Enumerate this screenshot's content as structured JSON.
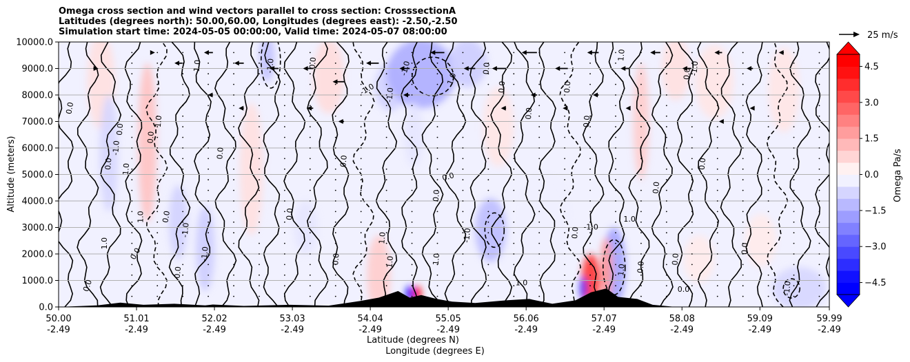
{
  "title": {
    "line1": "Omega cross section and wind vectors parallel to cross section: CrosssectionA",
    "line2": "Latitudes (degrees north): 50.00,60.00, Longitudes (degrees east): -2.50,-2.50",
    "line3": "Simulation start time: 2024-05-05 00:00:00, Valid time: 2024-05-07 08:00:00"
  },
  "quiver_key_label": "25 m/s",
  "chart_data": {
    "type": "heatmap",
    "title": "Omega cross section and wind vectors parallel to cross section: CrosssectionA",
    "xlabel_line1": "Latitude (degrees N)",
    "xlabel_line2": "Longitude (degrees E)",
    "ylabel": "Altitude (meters)",
    "ylim": [
      0,
      10000
    ],
    "xlim": [
      50.0,
      59.99
    ],
    "grid": "horizontal",
    "x_ticks": [
      {
        "lat": 50.0,
        "lat_label": "50.00",
        "lon_label": "-2.49"
      },
      {
        "lat": 51.01,
        "lat_label": "51.01",
        "lon_label": "-2.49"
      },
      {
        "lat": 52.02,
        "lat_label": "52.02",
        "lon_label": "-2.49"
      },
      {
        "lat": 53.03,
        "lat_label": "53.03",
        "lon_label": "-2.49"
      },
      {
        "lat": 54.04,
        "lat_label": "54.04",
        "lon_label": "-2.49"
      },
      {
        "lat": 55.05,
        "lat_label": "55.05",
        "lon_label": "-2.49"
      },
      {
        "lat": 56.06,
        "lat_label": "56.06",
        "lon_label": "-2.49"
      },
      {
        "lat": 57.07,
        "lat_label": "57.07",
        "lon_label": "-2.49"
      },
      {
        "lat": 58.08,
        "lat_label": "58.08",
        "lon_label": "-2.49"
      },
      {
        "lat": 59.09,
        "lat_label": "59.09",
        "lon_label": "-2.49"
      },
      {
        "lat": 59.99,
        "lat_label": "59.99",
        "lon_label": "-2.49"
      }
    ],
    "y_ticks": [
      {
        "value": 0,
        "label": "0.0"
      },
      {
        "value": 1000,
        "label": "1000.0"
      },
      {
        "value": 2000,
        "label": "2000.0"
      },
      {
        "value": 3000,
        "label": "3000.0"
      },
      {
        "value": 4000,
        "label": "4000.0"
      },
      {
        "value": 5000,
        "label": "5000.0"
      },
      {
        "value": 6000,
        "label": "6000.0"
      },
      {
        "value": 7000,
        "label": "7000.0"
      },
      {
        "value": 8000,
        "label": "8000.0"
      },
      {
        "value": 9000,
        "label": "9000.0"
      },
      {
        "value": 10000,
        "label": "10000.0"
      }
    ],
    "colorbar": {
      "label": "Omega Pa/s",
      "range": [
        -5,
        5
      ],
      "extend": "both",
      "cmap": "bwr",
      "ticks": [
        {
          "value": 4.5,
          "label": "4.5"
        },
        {
          "value": 3.0,
          "label": "3.0"
        },
        {
          "value": 1.5,
          "label": "1.5"
        },
        {
          "value": 0.0,
          "label": "0.0"
        },
        {
          "value": -1.5,
          "label": "−1.5"
        },
        {
          "value": -3.0,
          "label": "−3.0"
        },
        {
          "value": -4.5,
          "label": "−4.5"
        }
      ]
    },
    "omega_regions": [
      {
        "lat": 50.55,
        "alt": 8500,
        "w": 0.18,
        "h": 1800,
        "value": 0.6
      },
      {
        "lat": 51.15,
        "alt": 6200,
        "w": 0.12,
        "h": 3000,
        "value": 1.2
      },
      {
        "lat": 50.65,
        "alt": 5800,
        "w": 0.12,
        "h": 2200,
        "value": -0.8
      },
      {
        "lat": 51.55,
        "alt": 3200,
        "w": 0.12,
        "h": 1400,
        "value": -0.9
      },
      {
        "lat": 51.9,
        "alt": 2200,
        "w": 0.12,
        "h": 1600,
        "value": -1.0
      },
      {
        "lat": 52.5,
        "alt": 5200,
        "w": 0.15,
        "h": 2500,
        "value": 0.6
      },
      {
        "lat": 52.7,
        "alt": 9400,
        "w": 0.1,
        "h": 900,
        "value": -1.2
      },
      {
        "lat": 53.5,
        "alt": 8700,
        "w": 0.2,
        "h": 1400,
        "value": 0.7
      },
      {
        "lat": 54.3,
        "alt": 8300,
        "w": 0.2,
        "h": 900,
        "value": -0.9
      },
      {
        "lat": 54.7,
        "alt": 8800,
        "w": 0.45,
        "h": 1300,
        "value": -1.6
      },
      {
        "lat": 55.3,
        "alt": 9200,
        "w": 0.25,
        "h": 900,
        "value": -1.0
      },
      {
        "lat": 55.7,
        "alt": 6800,
        "w": 0.2,
        "h": 1500,
        "value": 0.5
      },
      {
        "lat": 54.6,
        "alt": 6500,
        "w": 0.12,
        "h": 1200,
        "value": -0.5
      },
      {
        "lat": 54.15,
        "alt": 1200,
        "w": 0.15,
        "h": 1500,
        "value": 1.0
      },
      {
        "lat": 54.55,
        "alt": 500,
        "w": 0.05,
        "h": 300,
        "value": -5.0
      },
      {
        "lat": 54.65,
        "alt": 500,
        "w": 0.05,
        "h": 300,
        "value": 5.0
      },
      {
        "lat": 55.6,
        "alt": 2900,
        "w": 0.2,
        "h": 1200,
        "value": -1.3
      },
      {
        "lat": 56.9,
        "alt": 1000,
        "w": 0.12,
        "h": 1000,
        "value": 4.0
      },
      {
        "lat": 56.8,
        "alt": 700,
        "w": 0.04,
        "h": 450,
        "value": -4.5
      },
      {
        "lat": 57.2,
        "alt": 1500,
        "w": 0.15,
        "h": 1500,
        "value": -1.8
      },
      {
        "lat": 57.1,
        "alt": 1400,
        "w": 0.08,
        "h": 1200,
        "value": 2.0
      },
      {
        "lat": 57.55,
        "alt": 7000,
        "w": 0.1,
        "h": 2200,
        "value": 1.0
      },
      {
        "lat": 58.0,
        "alt": 9000,
        "w": 0.18,
        "h": 1200,
        "value": 0.6
      },
      {
        "lat": 58.5,
        "alt": 8500,
        "w": 0.25,
        "h": 1400,
        "value": 0.5
      },
      {
        "lat": 59.4,
        "alt": 8200,
        "w": 0.2,
        "h": 1600,
        "value": 0.5
      },
      {
        "lat": 59.6,
        "alt": 700,
        "w": 0.35,
        "h": 800,
        "value": -0.8
      },
      {
        "lat": 58.3,
        "alt": 1800,
        "w": 0.2,
        "h": 900,
        "value": 0.4
      },
      {
        "lat": 59.1,
        "alt": 2500,
        "w": 0.2,
        "h": 1000,
        "value": 0.4
      },
      {
        "lat": 53.2,
        "alt": 3000,
        "w": 0.15,
        "h": 1000,
        "value": -0.5
      },
      {
        "lat": 56.3,
        "alt": 3500,
        "w": 0.3,
        "h": 1500,
        "value": -0.3
      }
    ],
    "contour_labels": [
      {
        "lat": 50.15,
        "alt": 7500,
        "label": "0.0",
        "angle": -80
      },
      {
        "lat": 50.38,
        "alt": 800,
        "label": "0.0",
        "angle": -70
      },
      {
        "lat": 50.6,
        "alt": 2400,
        "label": "1.0",
        "angle": -90
      },
      {
        "lat": 50.65,
        "alt": 5400,
        "label": "0.0",
        "angle": -85
      },
      {
        "lat": 50.75,
        "alt": 6000,
        "label": "-1.0",
        "angle": -85
      },
      {
        "lat": 50.8,
        "alt": 6700,
        "label": "0.0",
        "angle": -85
      },
      {
        "lat": 50.88,
        "alt": 5200,
        "label": "1.0",
        "angle": -85
      },
      {
        "lat": 51.07,
        "alt": 3400,
        "label": "1.0",
        "angle": -90
      },
      {
        "lat": 51.0,
        "alt": 2000,
        "label": "0.0",
        "angle": -60
      },
      {
        "lat": 51.2,
        "alt": 6400,
        "label": "0.0",
        "angle": -85
      },
      {
        "lat": 51.3,
        "alt": 7000,
        "label": "1.0",
        "angle": -85
      },
      {
        "lat": 51.4,
        "alt": 3400,
        "label": "0.0",
        "angle": -80
      },
      {
        "lat": 51.55,
        "alt": 1300,
        "label": "0.0",
        "angle": -85
      },
      {
        "lat": 51.65,
        "alt": 2900,
        "label": "-1.0",
        "angle": -85
      },
      {
        "lat": 51.9,
        "alt": 2000,
        "label": "-1.0",
        "angle": -85
      },
      {
        "lat": 51.8,
        "alt": 9100,
        "label": "1.0",
        "angle": -85
      },
      {
        "lat": 52.1,
        "alt": 5800,
        "label": "0.0",
        "angle": -85
      },
      {
        "lat": 52.75,
        "alt": 9100,
        "label": "-1.0",
        "angle": -85
      },
      {
        "lat": 53.0,
        "alt": 3500,
        "label": "0.0",
        "angle": -85
      },
      {
        "lat": 53.3,
        "alt": 9200,
        "label": "0.0",
        "angle": -85
      },
      {
        "lat": 53.7,
        "alt": 5500,
        "label": "0.0",
        "angle": -85
      },
      {
        "lat": 53.6,
        "alt": 1800,
        "label": "0.0",
        "angle": -85
      },
      {
        "lat": 54.2,
        "alt": 2600,
        "label": "1.0",
        "angle": -85
      },
      {
        "lat": 54.3,
        "alt": 1700,
        "label": "1.0",
        "angle": -85
      },
      {
        "lat": 54.0,
        "alt": 8200,
        "label": "-1.0",
        "angle": -30
      },
      {
        "lat": 54.3,
        "alt": 8000,
        "label": "-1.0",
        "angle": -85
      },
      {
        "lat": 54.5,
        "alt": 9000,
        "label": "-1.0",
        "angle": -75
      },
      {
        "lat": 54.9,
        "alt": 1800,
        "label": "1.0",
        "angle": -85
      },
      {
        "lat": 55.05,
        "alt": 4900,
        "label": "0.0",
        "angle": -15
      },
      {
        "lat": 54.9,
        "alt": 4200,
        "label": "0.0",
        "angle": -85
      },
      {
        "lat": 55.1,
        "alt": 8600,
        "label": "1.0",
        "angle": -70
      },
      {
        "lat": 55.3,
        "alt": 2700,
        "label": "-1.0",
        "angle": -85
      },
      {
        "lat": 55.55,
        "alt": 9000,
        "label": "0.0",
        "angle": -85
      },
      {
        "lat": 55.75,
        "alt": 8300,
        "label": "0.0",
        "angle": -85
      },
      {
        "lat": 56.1,
        "alt": 7300,
        "label": "0.0",
        "angle": -85
      },
      {
        "lat": 56.0,
        "alt": 900,
        "label": "1.0",
        "angle": 0
      },
      {
        "lat": 56.6,
        "alt": 8300,
        "label": "0.0",
        "angle": -85
      },
      {
        "lat": 56.9,
        "alt": 3000,
        "label": "-1.0",
        "angle": 0
      },
      {
        "lat": 56.7,
        "alt": 2800,
        "label": "0.0",
        "angle": -85
      },
      {
        "lat": 56.85,
        "alt": 7000,
        "label": "0.0",
        "angle": -85
      },
      {
        "lat": 57.3,
        "alt": 9500,
        "label": "1.0",
        "angle": -85
      },
      {
        "lat": 57.4,
        "alt": 3300,
        "label": "1.0",
        "angle": 0
      },
      {
        "lat": 57.3,
        "alt": 1400,
        "label": "1.0",
        "angle": -85
      },
      {
        "lat": 57.55,
        "alt": 1500,
        "label": "0.0",
        "angle": -85
      },
      {
        "lat": 57.75,
        "alt": 4500,
        "label": "0.0",
        "angle": -85
      },
      {
        "lat": 58.0,
        "alt": 1800,
        "label": "0.0",
        "angle": -85
      },
      {
        "lat": 58.1,
        "alt": 650,
        "label": "0.0",
        "angle": 0
      },
      {
        "lat": 58.15,
        "alt": 8800,
        "label": "0.0",
        "angle": -85
      },
      {
        "lat": 58.25,
        "alt": 9000,
        "label": "-1.0",
        "angle": -85
      },
      {
        "lat": 58.35,
        "alt": 5400,
        "label": "0.0",
        "angle": -85
      },
      {
        "lat": 58.9,
        "alt": 2200,
        "label": "0.0",
        "angle": -85
      },
      {
        "lat": 59.45,
        "alt": 700,
        "label": "-1.0",
        "angle": -85
      }
    ],
    "terrain_peaks": [
      {
        "lat": 50.0,
        "alt": 0
      },
      {
        "lat": 50.5,
        "alt": 60
      },
      {
        "lat": 50.8,
        "alt": 160
      },
      {
        "lat": 51.1,
        "alt": 80
      },
      {
        "lat": 51.5,
        "alt": 120
      },
      {
        "lat": 51.9,
        "alt": 60
      },
      {
        "lat": 52.0,
        "alt": 90
      },
      {
        "lat": 52.4,
        "alt": 40
      },
      {
        "lat": 53.0,
        "alt": 80
      },
      {
        "lat": 53.5,
        "alt": 50
      },
      {
        "lat": 53.9,
        "alt": 220
      },
      {
        "lat": 54.15,
        "alt": 350
      },
      {
        "lat": 54.4,
        "alt": 600
      },
      {
        "lat": 54.55,
        "alt": 350
      },
      {
        "lat": 54.7,
        "alt": 450
      },
      {
        "lat": 54.9,
        "alt": 300
      },
      {
        "lat": 55.1,
        "alt": 200
      },
      {
        "lat": 55.4,
        "alt": 150
      },
      {
        "lat": 55.8,
        "alt": 250
      },
      {
        "lat": 56.1,
        "alt": 300
      },
      {
        "lat": 56.4,
        "alt": 120
      },
      {
        "lat": 56.7,
        "alt": 250
      },
      {
        "lat": 56.9,
        "alt": 550
      },
      {
        "lat": 57.1,
        "alt": 700
      },
      {
        "lat": 57.25,
        "alt": 380
      },
      {
        "lat": 57.5,
        "alt": 300
      },
      {
        "lat": 57.7,
        "alt": 80
      },
      {
        "lat": 58.0,
        "alt": 0
      },
      {
        "lat": 59.99,
        "alt": 0
      }
    ],
    "wind_vectors": [
      {
        "lat": 50.45,
        "alt": 9000,
        "u": 8
      },
      {
        "lat": 51.2,
        "alt": 9600,
        "u": 6
      },
      {
        "lat": 51.6,
        "alt": 9200,
        "u": -12
      },
      {
        "lat": 52.0,
        "alt": 9600,
        "u": -14
      },
      {
        "lat": 52.4,
        "alt": 9200,
        "u": -15
      },
      {
        "lat": 52.85,
        "alt": 9000,
        "u": -14
      },
      {
        "lat": 53.3,
        "alt": 9000,
        "u": -16
      },
      {
        "lat": 53.7,
        "alt": 8500,
        "u": -18
      },
      {
        "lat": 54.15,
        "alt": 9200,
        "u": -20
      },
      {
        "lat": 54.55,
        "alt": 9000,
        "u": -16
      },
      {
        "lat": 55.0,
        "alt": 9600,
        "u": -22
      },
      {
        "lat": 55.4,
        "alt": 9000,
        "u": -18
      },
      {
        "lat": 55.8,
        "alt": 9000,
        "u": -22
      },
      {
        "lat": 56.2,
        "alt": 9600,
        "u": -24
      },
      {
        "lat": 56.6,
        "alt": 9000,
        "u": -20
      },
      {
        "lat": 57.0,
        "alt": 9600,
        "u": -18
      },
      {
        "lat": 57.4,
        "alt": 9000,
        "u": -14
      },
      {
        "lat": 57.8,
        "alt": 9600,
        "u": -16
      },
      {
        "lat": 58.2,
        "alt": 9000,
        "u": -14
      },
      {
        "lat": 58.6,
        "alt": 9600,
        "u": -12
      },
      {
        "lat": 59.0,
        "alt": 9000,
        "u": -10
      },
      {
        "lat": 59.4,
        "alt": 9600,
        "u": -8
      },
      {
        "lat": 52.0,
        "alt": 8000,
        "u": -8
      },
      {
        "lat": 52.4,
        "alt": 7500,
        "u": -8
      },
      {
        "lat": 53.3,
        "alt": 7500,
        "u": -10
      },
      {
        "lat": 53.7,
        "alt": 7000,
        "u": -9
      },
      {
        "lat": 54.55,
        "alt": 8000,
        "u": -10
      },
      {
        "lat": 55.8,
        "alt": 7500,
        "u": -8
      },
      {
        "lat": 56.2,
        "alt": 8000,
        "u": -10
      },
      {
        "lat": 56.6,
        "alt": 7500,
        "u": -8
      },
      {
        "lat": 57.0,
        "alt": 8000,
        "u": -9
      },
      {
        "lat": 57.4,
        "alt": 7500,
        "u": -6
      },
      {
        "lat": 58.6,
        "alt": 7000,
        "u": -5
      },
      {
        "lat": 59.0,
        "alt": 7500,
        "u": -5
      }
    ]
  }
}
